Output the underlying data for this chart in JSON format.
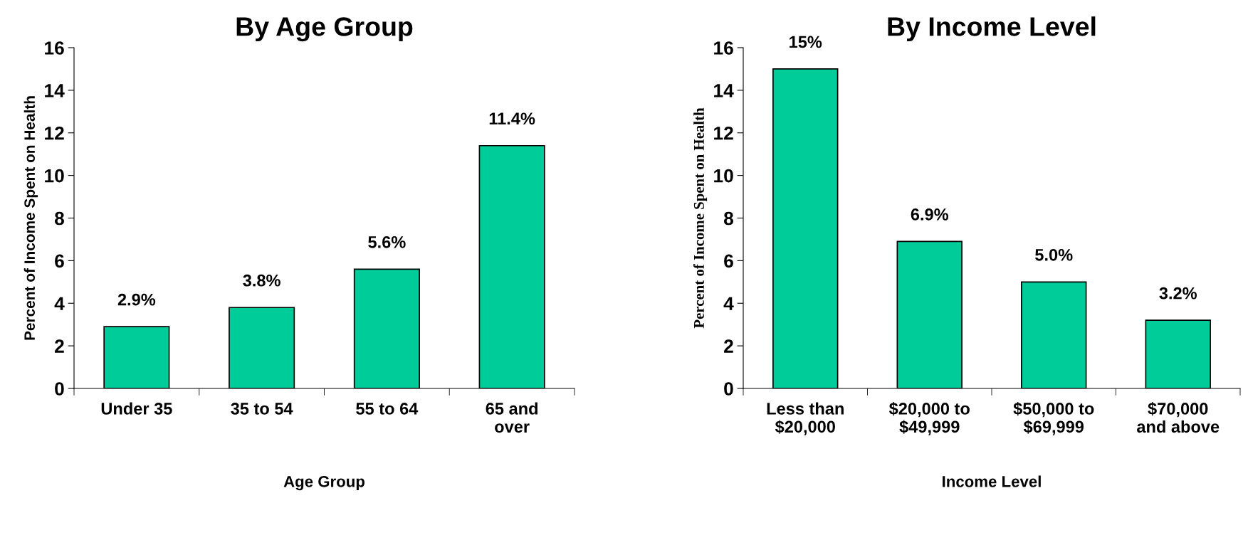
{
  "chart_data": [
    {
      "type": "bar",
      "title": "By Age Group",
      "xlabel": "Age Group",
      "ylabel": "Percent of Income Spent on Health",
      "categories": [
        "Under 35",
        "35 to 54",
        "55 to 64",
        "65 and\nover"
      ],
      "values": [
        2.9,
        3.8,
        5.6,
        11.4
      ],
      "value_labels": [
        "2.9%",
        "3.8%",
        "5.6%",
        "11.4%"
      ],
      "color": "#00cc99",
      "ylim": [
        0,
        16
      ],
      "yticks": [
        0,
        2,
        4,
        6,
        8,
        10,
        12,
        14,
        16
      ],
      "grid": false,
      "legend": false
    },
    {
      "type": "bar",
      "title": "By Income Level",
      "xlabel": "Income Level",
      "ylabel": "Percent of Income Spent on Health",
      "categories": [
        "Less than\n$20,000",
        "$20,000 to\n$49,999",
        "$50,000 to\n$69,999",
        "$70,000\nand above"
      ],
      "values": [
        15,
        6.9,
        5.0,
        3.2
      ],
      "value_labels": [
        "15%",
        "6.9%",
        "5.0%",
        "3.2%"
      ],
      "color": "#00cc99",
      "ylim": [
        0,
        16
      ],
      "yticks": [
        0,
        2,
        4,
        6,
        8,
        10,
        12,
        14,
        16
      ],
      "grid": false,
      "legend": false
    }
  ]
}
